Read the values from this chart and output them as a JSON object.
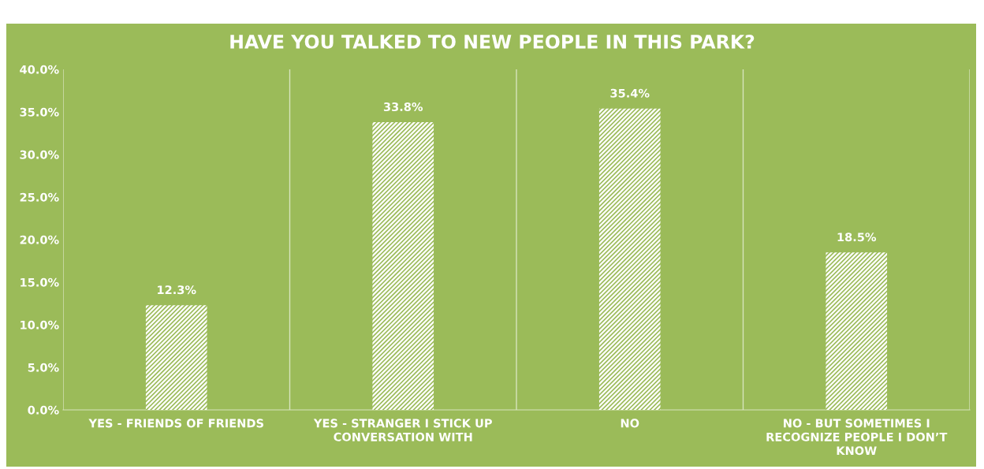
{
  "chart_data": {
    "type": "bar",
    "title": "HAVE YOU TALKED TO NEW PEOPLE IN THIS PARK?",
    "categories": [
      "YES - FRIENDS OF FRIENDS",
      "YES - STRANGER I STICK UP CONVERSATION WITH",
      "NO",
      "NO - BUT SOMETIMES I RECOGNIZE PEOPLE I DON’T KNOW"
    ],
    "values": [
      12.3,
      33.8,
      35.4,
      18.5
    ],
    "value_labels": [
      "12.3%",
      "33.8%",
      "35.4%",
      "18.5%"
    ],
    "color": "#ffffff",
    "ylim": [
      0,
      40
    ],
    "yticks": [
      {
        "value": 0,
        "label": "0.0%"
      },
      {
        "value": 5,
        "label": "5.0%"
      },
      {
        "value": 10,
        "label": "10.0%"
      },
      {
        "value": 15,
        "label": "15.0%"
      },
      {
        "value": 20,
        "label": "20.0%"
      },
      {
        "value": 25,
        "label": "25.0%"
      },
      {
        "value": 30,
        "label": "30.0%"
      },
      {
        "value": 35,
        "label": "35.0%"
      },
      {
        "value": 40,
        "label": "40.0%"
      }
    ],
    "grid": "x",
    "legend": false
  }
}
